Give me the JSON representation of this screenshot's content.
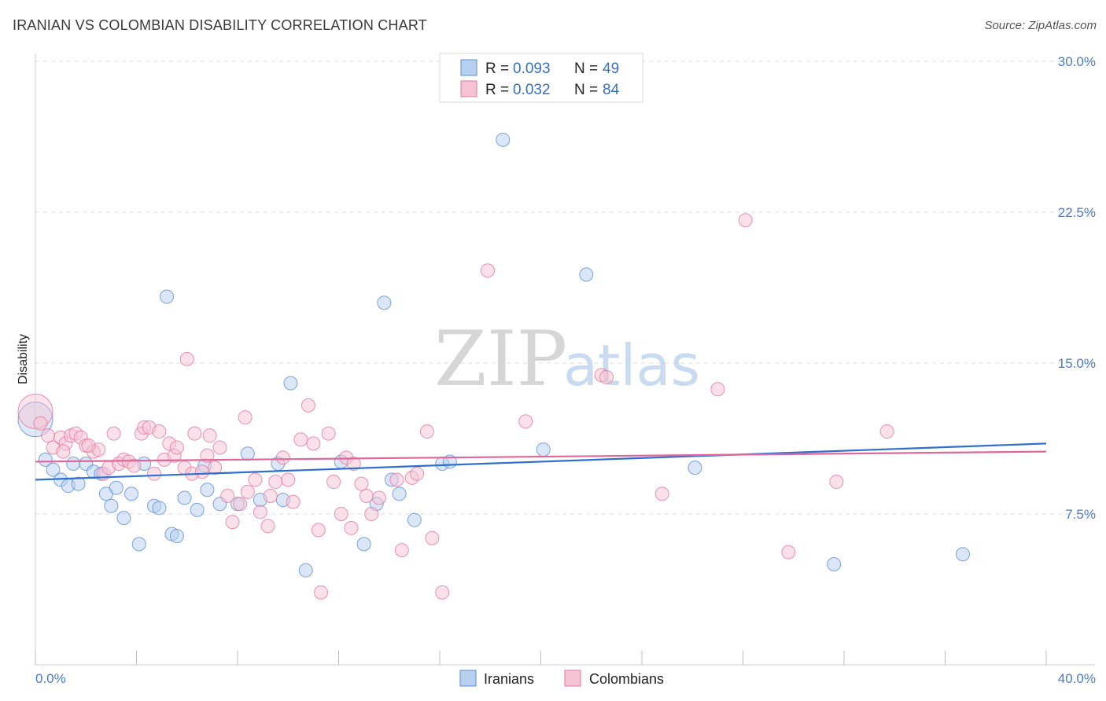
{
  "title": "IRANIAN VS COLOMBIAN DISABILITY CORRELATION CHART",
  "source": "Source: ZipAtlas.com",
  "watermark": {
    "zip": "ZIP",
    "atlas": "atlas"
  },
  "legend": {
    "rows": [
      {
        "r_label": "R = ",
        "r_value": "0.093",
        "n_label": "N = ",
        "n_value": "49"
      },
      {
        "r_label": "R = ",
        "r_value": "0.032",
        "n_label": "N = ",
        "n_value": "84"
      }
    ]
  },
  "chart_data": {
    "type": "scatter",
    "title": "IRANIAN VS COLOMBIAN DISABILITY CORRELATION CHART",
    "xlabel": "",
    "ylabel": "Disability",
    "xlim": [
      0,
      40
    ],
    "ylim": [
      0,
      30
    ],
    "x_tick_labels": [
      "0.0%",
      "40.0%"
    ],
    "y_ticks": [
      7.5,
      15,
      22.5,
      30
    ],
    "y_tick_labels": [
      "7.5%",
      "15.0%",
      "22.5%",
      "30.0%"
    ],
    "grid": true,
    "legend_position": "top-center",
    "series": [
      {
        "name": "Iranians",
        "color": "#5b8fd6",
        "fill": "#b7d0f0",
        "r": 0.093,
        "n": 49,
        "trend": [
          [
            0,
            9.2
          ],
          [
            40,
            11.0
          ]
        ],
        "points": [
          [
            0.0,
            12.2
          ],
          [
            0.4,
            10.2
          ],
          [
            0.7,
            9.7
          ],
          [
            1.0,
            9.2
          ],
          [
            1.3,
            8.9
          ],
          [
            1.5,
            10.0
          ],
          [
            1.7,
            9.0
          ],
          [
            2.0,
            10.0
          ],
          [
            2.3,
            9.6
          ],
          [
            2.6,
            9.5
          ],
          [
            2.8,
            8.5
          ],
          [
            3.0,
            7.9
          ],
          [
            3.2,
            8.8
          ],
          [
            3.5,
            7.3
          ],
          [
            3.8,
            8.5
          ],
          [
            4.1,
            6.0
          ],
          [
            4.3,
            10.0
          ],
          [
            4.7,
            7.9
          ],
          [
            4.9,
            7.8
          ],
          [
            5.2,
            18.3
          ],
          [
            5.4,
            6.5
          ],
          [
            5.6,
            6.4
          ],
          [
            5.9,
            8.3
          ],
          [
            6.4,
            7.7
          ],
          [
            6.7,
            9.9
          ],
          [
            6.8,
            8.7
          ],
          [
            7.3,
            8.0
          ],
          [
            8.0,
            8.0
          ],
          [
            8.4,
            10.5
          ],
          [
            8.9,
            8.2
          ],
          [
            9.6,
            10.0
          ],
          [
            9.8,
            8.2
          ],
          [
            10.1,
            14.0
          ],
          [
            10.7,
            4.7
          ],
          [
            12.1,
            10.1
          ],
          [
            13.0,
            6.0
          ],
          [
            13.5,
            8.0
          ],
          [
            13.8,
            18.0
          ],
          [
            14.1,
            9.2
          ],
          [
            14.4,
            8.5
          ],
          [
            15.0,
            7.2
          ],
          [
            16.1,
            10.0
          ],
          [
            16.4,
            10.1
          ],
          [
            18.5,
            26.1
          ],
          [
            20.1,
            10.7
          ],
          [
            21.8,
            19.4
          ],
          [
            26.1,
            9.8
          ],
          [
            31.6,
            5.0
          ],
          [
            36.7,
            5.5
          ]
        ]
      },
      {
        "name": "Colombians",
        "color": "#e5789c",
        "fill": "#f6c3d4",
        "r": 0.032,
        "n": 84,
        "trend": [
          [
            0,
            10.1
          ],
          [
            40,
            10.6
          ]
        ],
        "points": [
          [
            0.0,
            12.6
          ],
          [
            0.5,
            11.4
          ],
          [
            0.7,
            10.8
          ],
          [
            1.0,
            11.3
          ],
          [
            1.2,
            11.0
          ],
          [
            1.4,
            11.4
          ],
          [
            1.6,
            11.5
          ],
          [
            1.8,
            11.3
          ],
          [
            2.0,
            10.9
          ],
          [
            2.3,
            10.6
          ],
          [
            2.5,
            10.7
          ],
          [
            2.7,
            9.5
          ],
          [
            2.9,
            9.8
          ],
          [
            3.1,
            11.5
          ],
          [
            3.3,
            10.0
          ],
          [
            3.5,
            10.2
          ],
          [
            3.7,
            10.1
          ],
          [
            3.9,
            9.9
          ],
          [
            4.2,
            11.5
          ],
          [
            4.3,
            11.8
          ],
          [
            4.5,
            11.8
          ],
          [
            4.7,
            9.5
          ],
          [
            4.9,
            11.6
          ],
          [
            5.1,
            10.2
          ],
          [
            5.3,
            11.0
          ],
          [
            5.5,
            10.4
          ],
          [
            5.6,
            10.8
          ],
          [
            5.9,
            9.8
          ],
          [
            6.0,
            15.2
          ],
          [
            6.2,
            9.5
          ],
          [
            6.3,
            11.5
          ],
          [
            6.6,
            9.6
          ],
          [
            6.8,
            10.4
          ],
          [
            6.9,
            11.4
          ],
          [
            7.1,
            9.8
          ],
          [
            7.3,
            10.8
          ],
          [
            7.6,
            8.4
          ],
          [
            7.8,
            7.1
          ],
          [
            8.1,
            8.0
          ],
          [
            8.3,
            12.3
          ],
          [
            8.4,
            8.6
          ],
          [
            8.7,
            9.2
          ],
          [
            8.9,
            7.6
          ],
          [
            9.2,
            6.9
          ],
          [
            9.3,
            8.4
          ],
          [
            9.5,
            9.1
          ],
          [
            9.8,
            10.3
          ],
          [
            10.0,
            9.2
          ],
          [
            10.2,
            8.1
          ],
          [
            10.5,
            11.2
          ],
          [
            10.8,
            12.9
          ],
          [
            11.0,
            11.0
          ],
          [
            11.2,
            6.7
          ],
          [
            11.3,
            3.6
          ],
          [
            11.6,
            11.5
          ],
          [
            11.8,
            9.1
          ],
          [
            12.1,
            7.5
          ],
          [
            12.3,
            10.3
          ],
          [
            12.5,
            6.8
          ],
          [
            12.6,
            10.0
          ],
          [
            12.9,
            9.0
          ],
          [
            13.1,
            8.4
          ],
          [
            13.3,
            7.5
          ],
          [
            13.6,
            8.3
          ],
          [
            14.3,
            9.2
          ],
          [
            14.5,
            5.7
          ],
          [
            14.9,
            9.3
          ],
          [
            15.1,
            9.5
          ],
          [
            15.5,
            11.6
          ],
          [
            15.7,
            6.3
          ],
          [
            16.1,
            3.6
          ],
          [
            17.9,
            19.6
          ],
          [
            19.4,
            12.1
          ],
          [
            22.4,
            14.4
          ],
          [
            22.6,
            14.3
          ],
          [
            24.8,
            8.5
          ],
          [
            27.0,
            13.7
          ],
          [
            28.1,
            22.1
          ],
          [
            29.8,
            5.6
          ],
          [
            31.7,
            9.1
          ],
          [
            33.7,
            11.6
          ],
          [
            0.2,
            12.0
          ],
          [
            1.1,
            10.6
          ],
          [
            2.1,
            10.9
          ]
        ]
      }
    ]
  }
}
